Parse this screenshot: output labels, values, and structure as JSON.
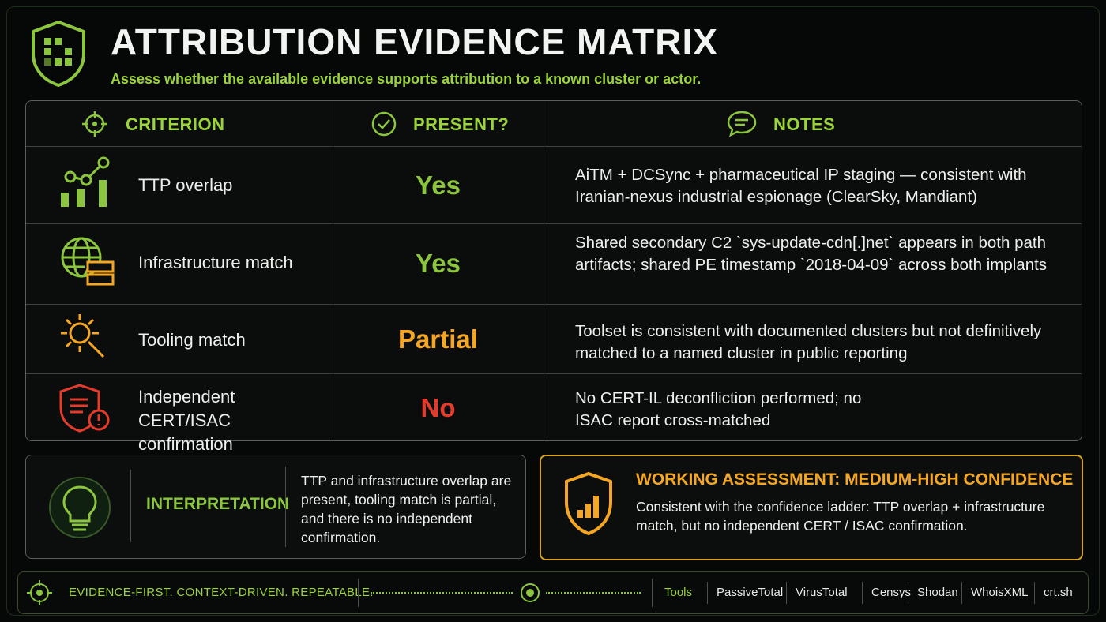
{
  "header": {
    "title": "ATTRIBUTION EVIDENCE MATRIX",
    "subtitle": "Assess whether the available evidence supports attribution to a known cluster or actor."
  },
  "table": {
    "columns": [
      "CRITERION",
      "PRESENT?",
      "NOTES"
    ],
    "rows": [
      [
        "TTP overlap",
        "Yes",
        "AiTM + DCSync + pharmaceutical IP staging — consistent with Iranian-nexus industrial espionage (ClearSky, Mandiant)"
      ],
      [
        "Infrastructure match",
        "Yes",
        "Shared secondary C2 `sys-update-cdn[.]net` appears in both path artifacts; shared PE timestamp `2018-04-09` across both implants"
      ],
      [
        "Tooling match",
        "Partial",
        "Toolset is consistent with documented clusters but not definitively matched to a named cluster in public reporting"
      ],
      [
        "Independent CERT/ISAC confirmation",
        "No",
        "No CERT-IL deconfliction performed; no ISAC report cross-matched"
      ]
    ]
  },
  "interpretation": {
    "label": "INTERPRETATION",
    "text": "TTP and infrastructure overlap are present, tooling match is partial, and there is no independent confirmation."
  },
  "assessment": {
    "title": "WORKING ASSESSMENT: MEDIUM-HIGH CONFIDENCE",
    "text": "Consistent with the confidence ladder: TTP overlap + infrastructure match, but no independent CERT / ISAC confirmation."
  },
  "footer": {
    "tagline": "EVIDENCE-FIRST. CONTEXT-DRIVEN. REPEATABLE.",
    "tools": [
      "Tools",
      "PassiveTotal",
      "VirusTotal",
      "Censys",
      "Shodan",
      "WhoisXML",
      "crt.sh"
    ]
  }
}
